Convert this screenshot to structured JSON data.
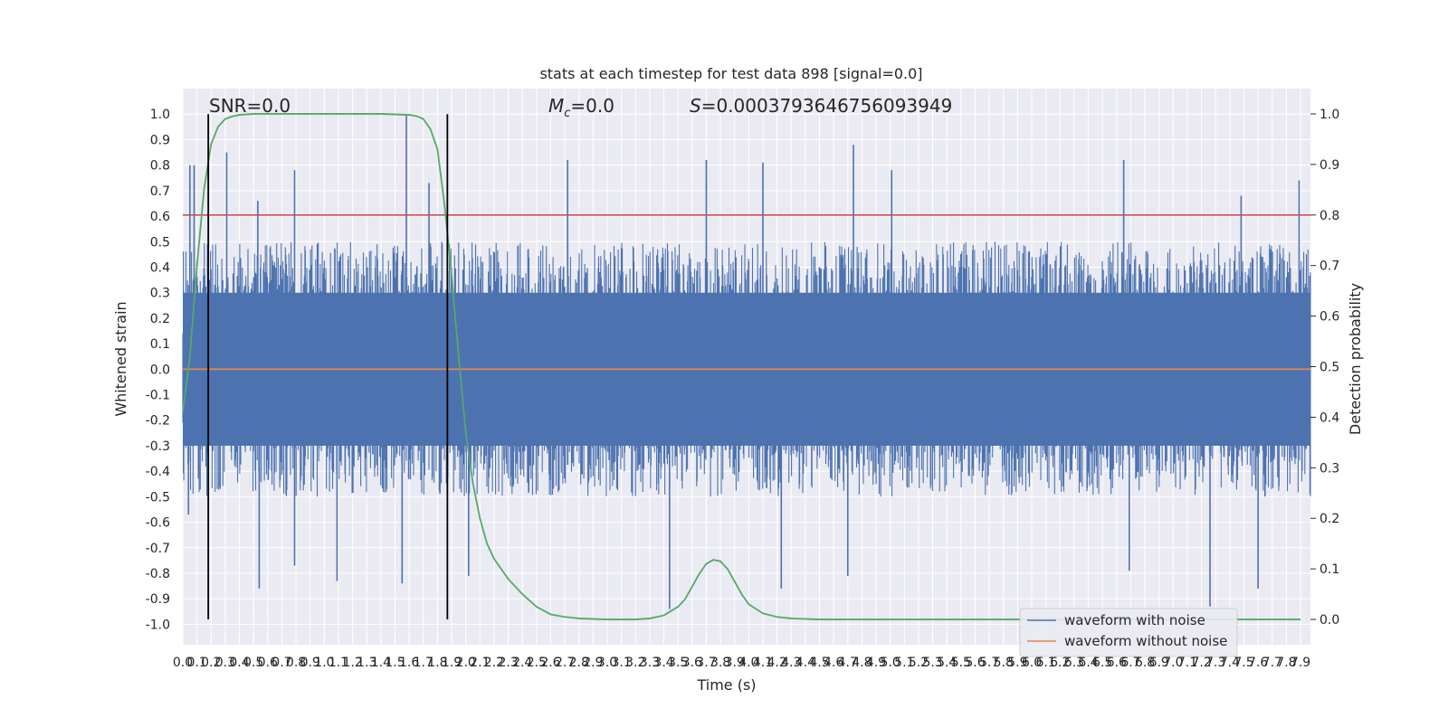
{
  "chart_data": {
    "type": "line",
    "title": "stats at each timestep for test data 898 [signal=0.0]",
    "xlabel": "Time (s)",
    "ylabel_left": "Whitened strain",
    "ylabel_right": "Detection probability",
    "xlim": [
      0.0,
      7.97
    ],
    "ylim_left": [
      -1.08,
      1.1
    ],
    "ylim_right": [
      -0.05,
      1.05
    ],
    "x_ticks": [
      "0.0",
      "0.1",
      "0.2",
      "0.3",
      "0.4",
      "0.5",
      "0.6",
      "0.7",
      "0.8",
      "0.9",
      "1.0",
      "1.1",
      "1.2",
      "1.3",
      "1.4",
      "1.5",
      "1.6",
      "1.7",
      "1.8",
      "1.9",
      "2.0",
      "2.1",
      "2.2",
      "2.3",
      "2.4",
      "2.5",
      "2.6",
      "2.7",
      "2.8",
      "2.9",
      "3.0",
      "3.1",
      "3.2",
      "3.3",
      "3.4",
      "3.5",
      "3.6",
      "3.7",
      "3.8",
      "3.9",
      "4.0",
      "4.1",
      "4.2",
      "4.3",
      "4.4",
      "4.5",
      "4.6",
      "4.7",
      "4.8",
      "4.9",
      "5.0",
      "5.1",
      "5.2",
      "5.3",
      "5.4",
      "5.5",
      "5.6",
      "5.7",
      "5.8",
      "5.9",
      "6.0",
      "6.1",
      "6.2",
      "6.3",
      "6.4",
      "6.5",
      "6.6",
      "6.7",
      "6.8",
      "6.9",
      "7.0",
      "7.1",
      "7.2",
      "7.3",
      "7.4",
      "7.5",
      "7.6",
      "7.7",
      "7.8",
      "7.9"
    ],
    "y_ticks_left": [
      "1.0",
      "0.9",
      "0.8",
      "0.7",
      "0.6",
      "0.5",
      "0.4",
      "0.3",
      "0.2",
      "0.1",
      "0.0",
      "-0.1",
      "-0.2",
      "-0.3",
      "-0.4",
      "-0.5",
      "-0.6",
      "-0.7",
      "-0.8",
      "-0.9",
      "-1.0"
    ],
    "y_ticks_right": [
      "1.0",
      "0.9",
      "0.8",
      "0.7",
      "0.6",
      "0.5",
      "0.4",
      "0.3",
      "0.2",
      "0.1",
      "0.0"
    ],
    "annotations": {
      "snr": "SNR=0.0",
      "mc": "=0.0",
      "mc_symbol": "M",
      "mc_sub": "c",
      "s": "=0.0003793646756093949",
      "s_symbol": "S"
    },
    "threshold": {
      "value": 0.8,
      "color": "#c44e52"
    },
    "vertical_markers": [
      0.18,
      1.87
    ],
    "series": [
      {
        "name": "waveform with noise",
        "color": "#4c72b0",
        "noise_envelope": [
          0.4,
          0.4
        ],
        "noise_peaks": [
          {
            "x": 0.05,
            "y": 0.8
          },
          {
            "x": 0.08,
            "y": 0.8
          },
          {
            "x": 0.31,
            "y": 0.85
          },
          {
            "x": 0.53,
            "y": 0.66
          },
          {
            "x": 0.79,
            "y": 0.78
          },
          {
            "x": 1.58,
            "y": 1.0
          },
          {
            "x": 1.74,
            "y": 0.73
          },
          {
            "x": 2.72,
            "y": 0.82
          },
          {
            "x": 3.7,
            "y": 0.82
          },
          {
            "x": 4.1,
            "y": 0.81
          },
          {
            "x": 4.74,
            "y": 0.88
          },
          {
            "x": 5.01,
            "y": 0.78
          },
          {
            "x": 6.65,
            "y": 0.82
          },
          {
            "x": 7.48,
            "y": 0.68
          },
          {
            "x": 7.89,
            "y": 0.74
          },
          {
            "x": 0.04,
            "y": -0.57
          },
          {
            "x": 0.54,
            "y": -0.86
          },
          {
            "x": 0.79,
            "y": -0.77
          },
          {
            "x": 1.09,
            "y": -0.83
          },
          {
            "x": 1.55,
            "y": -0.84
          },
          {
            "x": 2.02,
            "y": -0.81
          },
          {
            "x": 3.44,
            "y": -0.94
          },
          {
            "x": 4.23,
            "y": -0.86
          },
          {
            "x": 4.7,
            "y": -0.81
          },
          {
            "x": 6.69,
            "y": -0.79
          },
          {
            "x": 7.26,
            "y": -0.93
          },
          {
            "x": 7.6,
            "y": -0.86
          }
        ]
      },
      {
        "name": "waveform without noise",
        "color": "#dd8452",
        "x": [
          0.0,
          7.97
        ],
        "y": [
          0.0,
          0.0
        ]
      },
      {
        "name": "detection probability",
        "color": "#55a868",
        "axis": "right",
        "x": [
          0.0,
          0.05,
          0.1,
          0.15,
          0.2,
          0.25,
          0.3,
          0.35,
          0.4,
          0.45,
          0.5,
          0.6,
          0.8,
          1.0,
          1.2,
          1.4,
          1.6,
          1.65,
          1.7,
          1.75,
          1.8,
          1.85,
          1.9,
          1.95,
          2.0,
          2.05,
          2.1,
          2.15,
          2.2,
          2.3,
          2.4,
          2.5,
          2.6,
          2.7,
          2.8,
          3.0,
          3.2,
          3.3,
          3.4,
          3.5,
          3.55,
          3.6,
          3.65,
          3.7,
          3.75,
          3.8,
          3.85,
          3.9,
          3.95,
          4.0,
          4.1,
          4.2,
          4.3,
          4.5,
          5.0,
          6.0,
          7.0,
          7.9
        ],
        "y": [
          0.41,
          0.52,
          0.7,
          0.85,
          0.94,
          0.975,
          0.99,
          0.995,
          0.998,
          0.999,
          1.0,
          1.0,
          1.0,
          1.0,
          1.0,
          1.0,
          0.998,
          0.996,
          0.99,
          0.97,
          0.93,
          0.82,
          0.68,
          0.52,
          0.37,
          0.27,
          0.2,
          0.15,
          0.12,
          0.08,
          0.05,
          0.025,
          0.01,
          0.005,
          0.002,
          0.0,
          0.0,
          0.002,
          0.008,
          0.025,
          0.04,
          0.065,
          0.09,
          0.11,
          0.118,
          0.115,
          0.1,
          0.075,
          0.05,
          0.03,
          0.012,
          0.005,
          0.002,
          0.0,
          0.0,
          0.0,
          0.0,
          0.0
        ]
      }
    ],
    "legend": {
      "placement": "lower-right",
      "entries": [
        {
          "label": "waveform with noise",
          "color": "#4c72b0"
        },
        {
          "label": "waveform without noise",
          "color": "#dd8452"
        }
      ]
    },
    "style": {
      "plot_bg": "#eaeaf2",
      "grid_color": "#ffffff",
      "marker_color": "#000000"
    }
  }
}
